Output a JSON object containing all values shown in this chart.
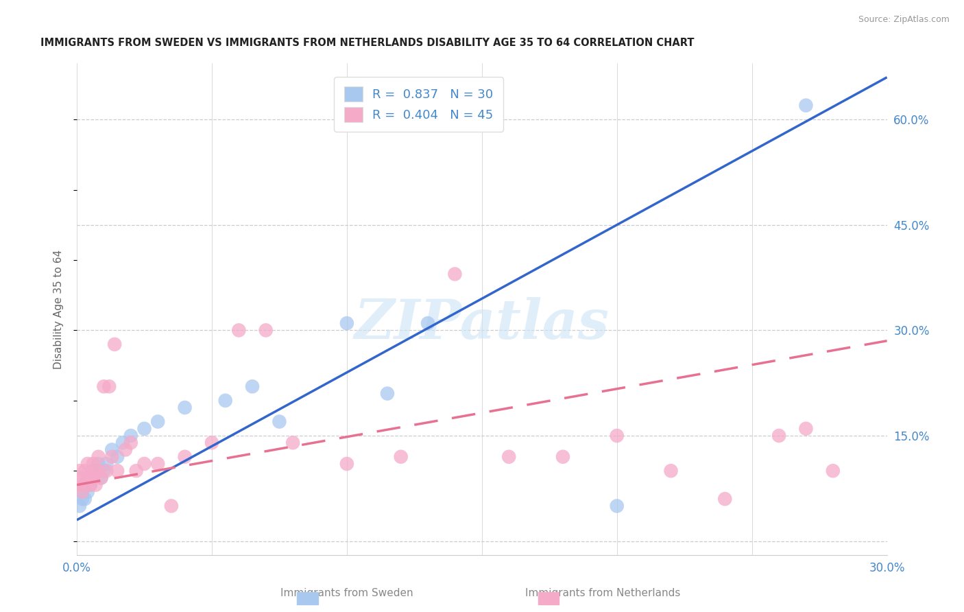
{
  "title": "IMMIGRANTS FROM SWEDEN VS IMMIGRANTS FROM NETHERLANDS DISABILITY AGE 35 TO 64 CORRELATION CHART",
  "source": "Source: ZipAtlas.com",
  "ylabel": "Disability Age 35 to 64",
  "x_label_bottom": "Immigrants from Sweden",
  "x_label_bottom2": "Immigrants from Netherlands",
  "xlim": [
    0.0,
    0.3
  ],
  "ylim": [
    -0.02,
    0.68
  ],
  "xtick_positions": [
    0.0,
    0.05,
    0.1,
    0.15,
    0.2,
    0.25,
    0.3
  ],
  "xtick_labels": [
    "0.0%",
    "",
    "",
    "",
    "",
    "",
    "30.0%"
  ],
  "ytick_vals": [
    0.0,
    0.15,
    0.3,
    0.45,
    0.6
  ],
  "ytick_labels": [
    "",
    "15.0%",
    "30.0%",
    "45.0%",
    "60.0%"
  ],
  "sweden_R": 0.837,
  "sweden_N": 30,
  "netherlands_R": 0.404,
  "netherlands_N": 45,
  "sweden_color": "#a8c8f0",
  "netherlands_color": "#f5aac8",
  "sweden_line_color": "#3366cc",
  "netherlands_line_color": "#e87090",
  "text_blue": "#4488cc",
  "background_color": "#ffffff",
  "watermark": "ZIPatlas",
  "sweden_x": [
    0.001,
    0.002,
    0.002,
    0.003,
    0.003,
    0.004,
    0.004,
    0.005,
    0.006,
    0.006,
    0.007,
    0.008,
    0.009,
    0.01,
    0.011,
    0.013,
    0.015,
    0.017,
    0.02,
    0.025,
    0.03,
    0.04,
    0.055,
    0.065,
    0.075,
    0.1,
    0.115,
    0.13,
    0.2,
    0.27
  ],
  "sweden_y": [
    0.05,
    0.06,
    0.07,
    0.06,
    0.08,
    0.07,
    0.09,
    0.08,
    0.09,
    0.1,
    0.1,
    0.11,
    0.09,
    0.1,
    0.11,
    0.13,
    0.12,
    0.14,
    0.15,
    0.16,
    0.17,
    0.19,
    0.2,
    0.22,
    0.17,
    0.31,
    0.21,
    0.31,
    0.05,
    0.62
  ],
  "netherlands_x": [
    0.001,
    0.001,
    0.002,
    0.002,
    0.003,
    0.003,
    0.004,
    0.004,
    0.005,
    0.005,
    0.006,
    0.006,
    0.007,
    0.007,
    0.008,
    0.008,
    0.009,
    0.01,
    0.011,
    0.012,
    0.013,
    0.014,
    0.015,
    0.018,
    0.02,
    0.022,
    0.025,
    0.03,
    0.035,
    0.04,
    0.05,
    0.06,
    0.07,
    0.08,
    0.1,
    0.12,
    0.14,
    0.16,
    0.18,
    0.2,
    0.22,
    0.24,
    0.26,
    0.27,
    0.28
  ],
  "netherlands_y": [
    0.08,
    0.1,
    0.07,
    0.09,
    0.08,
    0.1,
    0.09,
    0.11,
    0.08,
    0.09,
    0.09,
    0.11,
    0.1,
    0.08,
    0.1,
    0.12,
    0.09,
    0.22,
    0.1,
    0.22,
    0.12,
    0.28,
    0.1,
    0.13,
    0.14,
    0.1,
    0.11,
    0.11,
    0.05,
    0.12,
    0.14,
    0.3,
    0.3,
    0.14,
    0.11,
    0.12,
    0.38,
    0.12,
    0.12,
    0.15,
    0.1,
    0.06,
    0.15,
    0.16,
    0.1
  ],
  "sw_line_x0": 0.0,
  "sw_line_y0": 0.03,
  "sw_line_x1": 0.3,
  "sw_line_y1": 0.66,
  "nl_line_x0": 0.0,
  "nl_line_y0": 0.08,
  "nl_line_x1": 0.3,
  "nl_line_y1": 0.285
}
